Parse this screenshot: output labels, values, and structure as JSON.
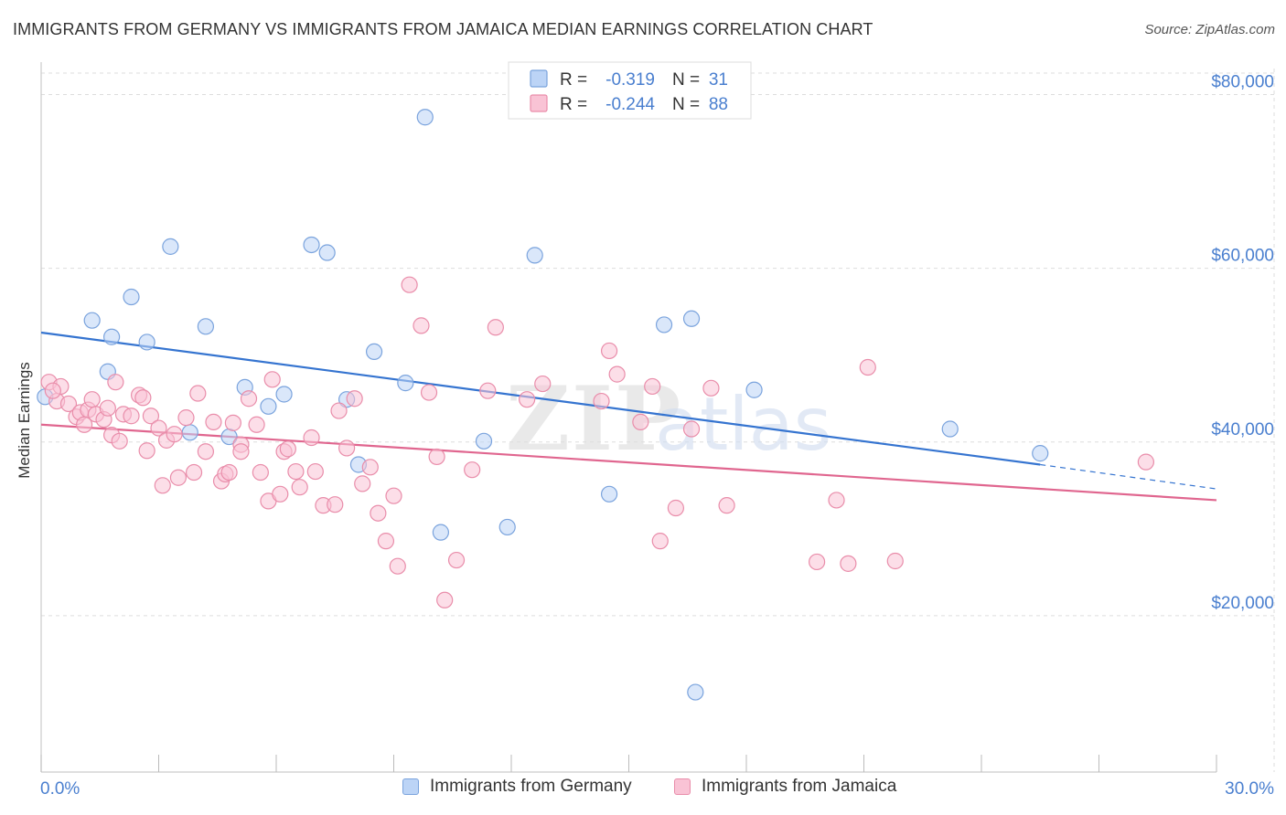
{
  "header": {
    "title": "IMMIGRANTS FROM GERMANY VS IMMIGRANTS FROM JAMAICA MEDIAN EARNINGS CORRELATION CHART",
    "source": "Source: ZipAtlas.com"
  },
  "watermark": "ZIPatlas",
  "colors": {
    "germany_fill": "#bcd4f6",
    "germany_stroke": "#7aa3dd",
    "germany_line": "#3574d0",
    "jamaica_fill": "#f9c3d5",
    "jamaica_stroke": "#e98daa",
    "jamaica_line": "#e0668f",
    "axis_label_blue": "#4a7fcf",
    "grid": "#dddddd"
  },
  "stats": [
    {
      "r_label": "R =",
      "r": "-0.319",
      "n_label": "N =",
      "n": "31"
    },
    {
      "r_label": "R =",
      "r": "-0.244",
      "n_label": "N =",
      "n": "88"
    }
  ],
  "chart_data": {
    "type": "scatter",
    "title": "IMMIGRANTS FROM GERMANY VS IMMIGRANTS FROM JAMAICA MEDIAN EARNINGS CORRELATION CHART",
    "xlabel": "",
    "ylabel": "Median Earnings",
    "xlim": [
      0,
      30
    ],
    "ylim": [
      2000,
      83000
    ],
    "x_tick_labels": [
      "0.0%",
      "30.0%"
    ],
    "y_ticks": [
      20000,
      40000,
      60000,
      80000
    ],
    "y_tick_labels": [
      "$20,000",
      "$40,000",
      "$60,000",
      "$80,000"
    ],
    "grid": true,
    "legend_position": "bottom",
    "series": [
      {
        "name": "Immigrants from Germany",
        "points": [
          [
            0.1,
            45200
          ],
          [
            1.3,
            54000
          ],
          [
            1.8,
            52100
          ],
          [
            1.7,
            48100
          ],
          [
            2.3,
            56700
          ],
          [
            2.7,
            51500
          ],
          [
            3.3,
            62500
          ],
          [
            3.8,
            41100
          ],
          [
            4.2,
            53300
          ],
          [
            4.8,
            40600
          ],
          [
            5.2,
            46300
          ],
          [
            5.8,
            44100
          ],
          [
            6.2,
            45500
          ],
          [
            6.9,
            62700
          ],
          [
            7.3,
            61800
          ],
          [
            7.8,
            44900
          ],
          [
            8.1,
            37400
          ],
          [
            8.5,
            50400
          ],
          [
            9.3,
            46800
          ],
          [
            9.8,
            77400
          ],
          [
            10.2,
            29600
          ],
          [
            11.3,
            40100
          ],
          [
            11.9,
            30200
          ],
          [
            12.6,
            61500
          ],
          [
            14.5,
            34000
          ],
          [
            15.9,
            53500
          ],
          [
            16.6,
            54200
          ],
          [
            16.7,
            11200
          ],
          [
            18.2,
            46000
          ],
          [
            23.2,
            41500
          ],
          [
            25.5,
            38700
          ]
        ]
      },
      {
        "name": "Immigrants from Jamaica",
        "points": [
          [
            0.2,
            46900
          ],
          [
            0.4,
            44700
          ],
          [
            0.5,
            46400
          ],
          [
            0.7,
            44400
          ],
          [
            0.9,
            42900
          ],
          [
            1.0,
            43400
          ],
          [
            1.2,
            43700
          ],
          [
            1.3,
            44900
          ],
          [
            1.4,
            43200
          ],
          [
            1.6,
            42600
          ],
          [
            1.7,
            43900
          ],
          [
            1.8,
            40800
          ],
          [
            1.9,
            46900
          ],
          [
            2.0,
            40100
          ],
          [
            2.1,
            43200
          ],
          [
            2.3,
            43000
          ],
          [
            2.5,
            45400
          ],
          [
            2.6,
            45100
          ],
          [
            2.7,
            39000
          ],
          [
            2.8,
            43000
          ],
          [
            3.0,
            41600
          ],
          [
            3.1,
            35000
          ],
          [
            3.2,
            40200
          ],
          [
            3.4,
            40900
          ],
          [
            3.5,
            35900
          ],
          [
            3.7,
            42800
          ],
          [
            3.9,
            36500
          ],
          [
            4.0,
            45600
          ],
          [
            4.2,
            38900
          ],
          [
            4.4,
            42300
          ],
          [
            4.6,
            35500
          ],
          [
            4.7,
            36300
          ],
          [
            4.8,
            36500
          ],
          [
            4.9,
            42200
          ],
          [
            5.1,
            39700
          ],
          [
            5.1,
            38900
          ],
          [
            5.3,
            45000
          ],
          [
            5.5,
            42000
          ],
          [
            5.6,
            36500
          ],
          [
            5.8,
            33200
          ],
          [
            5.9,
            47200
          ],
          [
            6.1,
            34000
          ],
          [
            6.2,
            38900
          ],
          [
            6.3,
            39200
          ],
          [
            6.5,
            36600
          ],
          [
            6.6,
            34800
          ],
          [
            6.9,
            40500
          ],
          [
            7.0,
            36600
          ],
          [
            7.2,
            32700
          ],
          [
            7.5,
            32800
          ],
          [
            7.6,
            43600
          ],
          [
            7.8,
            39300
          ],
          [
            8.0,
            45000
          ],
          [
            8.2,
            35200
          ],
          [
            8.4,
            37100
          ],
          [
            8.6,
            31800
          ],
          [
            8.8,
            28600
          ],
          [
            9.0,
            33800
          ],
          [
            9.1,
            25700
          ],
          [
            9.4,
            58100
          ],
          [
            9.7,
            53400
          ],
          [
            9.9,
            45700
          ],
          [
            10.1,
            38300
          ],
          [
            10.3,
            21800
          ],
          [
            10.6,
            26400
          ],
          [
            11.0,
            36800
          ],
          [
            11.4,
            45900
          ],
          [
            11.6,
            53200
          ],
          [
            12.4,
            44900
          ],
          [
            12.8,
            46700
          ],
          [
            14.3,
            44700
          ],
          [
            14.5,
            50500
          ],
          [
            14.7,
            47800
          ],
          [
            15.3,
            42300
          ],
          [
            15.6,
            46400
          ],
          [
            15.8,
            28600
          ],
          [
            16.2,
            32400
          ],
          [
            16.6,
            41500
          ],
          [
            17.1,
            46200
          ],
          [
            17.5,
            32700
          ],
          [
            19.8,
            26200
          ],
          [
            20.3,
            33300
          ],
          [
            20.6,
            26000
          ],
          [
            21.1,
            48600
          ],
          [
            21.8,
            26300
          ],
          [
            28.2,
            37700
          ],
          [
            0.3,
            45900
          ],
          [
            1.1,
            42000
          ]
        ]
      }
    ],
    "trend_lines": [
      {
        "series": "Immigrants from Germany",
        "x0": 0,
        "y0": 52600,
        "x1": 25.5,
        "y1": 37400,
        "dashed_to_x": 30,
        "dashed_to_y": 34600
      },
      {
        "series": "Immigrants from Jamaica",
        "x0": 0,
        "y0": 42000,
        "x1": 30,
        "y1": 33300
      }
    ]
  },
  "legend": {
    "items": [
      {
        "label": "Immigrants from Germany"
      },
      {
        "label": "Immigrants from Jamaica"
      }
    ]
  }
}
